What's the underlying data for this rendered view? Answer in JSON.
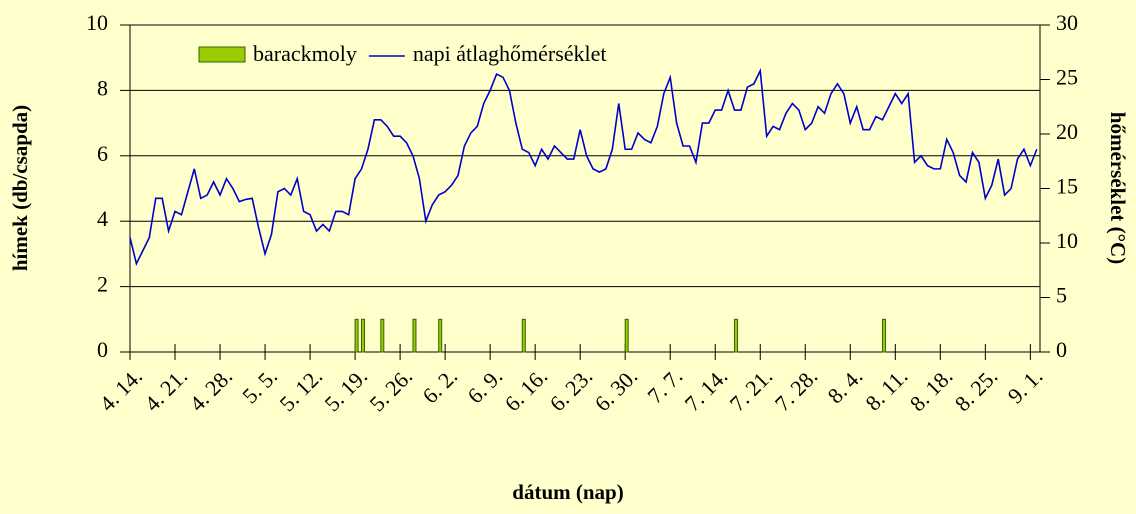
{
  "chart_data": {
    "type": "bar-line",
    "xlabel": "dátum (nap)",
    "ylabel": "hímek (db/csapda)",
    "y2label": "hőmérséklet (°C)",
    "categories": [
      "4. 14.",
      null,
      null,
      null,
      null,
      null,
      null,
      "4. 21.",
      null,
      null,
      null,
      null,
      null,
      null,
      "4. 28.",
      null,
      null,
      null,
      null,
      null,
      null,
      "5. 5.",
      null,
      null,
      null,
      null,
      null,
      null,
      "5. 12.",
      null,
      null,
      null,
      null,
      null,
      null,
      "5. 19.",
      null,
      null,
      null,
      null,
      null,
      null,
      "5. 26.",
      null,
      null,
      null,
      null,
      null,
      null,
      "6. 2.",
      null,
      null,
      null,
      null,
      null,
      null,
      "6. 9.",
      null,
      null,
      null,
      null,
      null,
      null,
      "6. 16.",
      null,
      null,
      null,
      null,
      null,
      null,
      "6. 23.",
      null,
      null,
      null,
      null,
      null,
      null,
      "6. 30.",
      null,
      null,
      null,
      null,
      null,
      null,
      "7. 7.",
      null,
      null,
      null,
      null,
      null,
      null,
      "7. 14.",
      null,
      null,
      null,
      null,
      null,
      null,
      "7. 21.",
      null,
      null,
      null,
      null,
      null,
      null,
      "7. 28.",
      null,
      null,
      null,
      null,
      null,
      null,
      "8. 4.",
      null,
      null,
      null,
      null,
      null,
      null,
      "8. 11.",
      null,
      null,
      null,
      null,
      null,
      null,
      "8. 18.",
      null,
      null,
      null,
      null,
      null,
      null,
      "8. 25.",
      null,
      null,
      null,
      null,
      null,
      null,
      "9. 1.",
      null
    ],
    "series": [
      {
        "name": "barackmoly",
        "type": "bar",
        "color": "#99cc00",
        "values": [
          0,
          0,
          0,
          0,
          0,
          0,
          0,
          0,
          0,
          0,
          0,
          0,
          0,
          0,
          0,
          0,
          0,
          0,
          0,
          0,
          0,
          0,
          0,
          0,
          0,
          0,
          0,
          0,
          0,
          0,
          0,
          0,
          0,
          0,
          0,
          1,
          1,
          0,
          0,
          1,
          0,
          0,
          0,
          0,
          1,
          0,
          0,
          0,
          1,
          0,
          0,
          0,
          0,
          0,
          0,
          0,
          0,
          0,
          0,
          0,
          0,
          1,
          0,
          0,
          0,
          0,
          0,
          0,
          0,
          0,
          0,
          0,
          0,
          0,
          0,
          0,
          0,
          1,
          0,
          0,
          0,
          0,
          0,
          0,
          0,
          0,
          0,
          0,
          0,
          0,
          0,
          0,
          0,
          0,
          1,
          0,
          0,
          0,
          0,
          0,
          0,
          0,
          0,
          0,
          0,
          0,
          0,
          0,
          0,
          0,
          0,
          0,
          0,
          0,
          0,
          0,
          0,
          1,
          0,
          0,
          0,
          0,
          0,
          0,
          0,
          0,
          0,
          0,
          0,
          0,
          0,
          0,
          0,
          0,
          0,
          0,
          0,
          0,
          0,
          0,
          0,
          0
        ]
      },
      {
        "name": "napi átlaghőmérséklet",
        "type": "line",
        "axis": "y2",
        "color": "#0000cc",
        "values": [
          10.5,
          8.1,
          9.3,
          10.5,
          14.1,
          14.1,
          11.1,
          12.9,
          12.6,
          14.7,
          16.8,
          14.1,
          14.4,
          15.6,
          14.4,
          15.9,
          15.0,
          13.8,
          14.0,
          14.1,
          11.4,
          9.0,
          10.8,
          14.7,
          15.0,
          14.4,
          15.9,
          12.9,
          12.6,
          11.1,
          11.7,
          11.1,
          12.9,
          12.9,
          12.6,
          15.9,
          16.8,
          18.6,
          21.3,
          21.3,
          20.7,
          19.8,
          19.8,
          19.2,
          18.0,
          15.9,
          12.0,
          13.5,
          14.4,
          14.7,
          15.3,
          16.2,
          18.9,
          20.1,
          20.7,
          22.8,
          24.0,
          25.5,
          25.2,
          24.0,
          21.0,
          18.6,
          18.3,
          17.1,
          18.6,
          17.7,
          18.9,
          18.3,
          17.7,
          17.7,
          20.4,
          18.0,
          16.8,
          16.5,
          16.8,
          18.6,
          22.8,
          18.6,
          18.6,
          20.1,
          19.5,
          19.2,
          20.7,
          23.7,
          25.2,
          21.0,
          18.9,
          18.9,
          17.4,
          21.0,
          21.0,
          22.2,
          22.2,
          24.0,
          22.2,
          22.2,
          24.3,
          24.6,
          25.8,
          19.8,
          20.7,
          20.4,
          21.9,
          22.8,
          22.2,
          20.4,
          21.0,
          22.5,
          21.9,
          23.7,
          24.6,
          23.7,
          21.0,
          22.5,
          20.4,
          20.4,
          21.6,
          21.3,
          22.5,
          23.7,
          22.8,
          23.7,
          17.4,
          18.0,
          17.1,
          16.8,
          16.8,
          19.5,
          18.3,
          16.2,
          15.6,
          18.3,
          17.4,
          14.1,
          15.3,
          17.7,
          14.4,
          15.0,
          17.7,
          18.6,
          17.1,
          18.6
        ]
      }
    ],
    "ylim": [
      0,
      10
    ],
    "yticks": [
      0,
      2,
      4,
      6,
      8,
      10
    ],
    "y2lim": [
      0,
      30
    ],
    "y2ticks": [
      0,
      5,
      10,
      15,
      20,
      25,
      30
    ],
    "grid": true
  }
}
